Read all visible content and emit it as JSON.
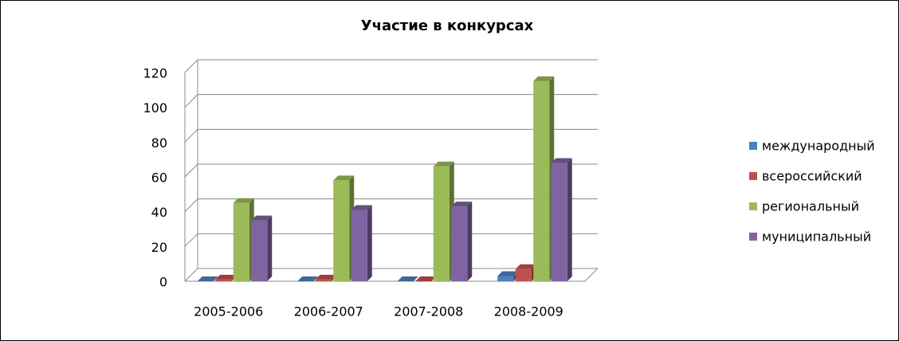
{
  "chart_data": {
    "type": "bar3d",
    "title": "Участие в конкурсах",
    "categories": [
      "2005-2006",
      "2006-2007",
      "2007-2008",
      "2008-2009"
    ],
    "series": [
      {
        "name": "международный",
        "color": "#4f81bd",
        "values": [
          0,
          0,
          0,
          3
        ]
      },
      {
        "name": "всероссийский",
        "color": "#c0504d",
        "values": [
          1,
          1,
          0,
          7
        ]
      },
      {
        "name": "региональный",
        "color": "#9bbb59",
        "values": [
          45,
          58,
          66,
          115
        ]
      },
      {
        "name": "муниципальный",
        "color": "#8064a2",
        "values": [
          35,
          41,
          43,
          68
        ]
      }
    ],
    "ylim": [
      0,
      120
    ],
    "yticks": [
      0,
      20,
      40,
      60,
      80,
      100,
      120
    ],
    "grid": true,
    "legend": "right"
  }
}
